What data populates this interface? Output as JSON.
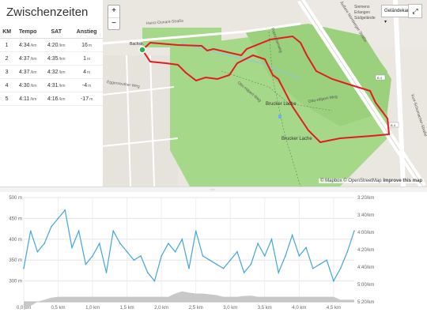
{
  "panel": {
    "title": "Zwischenzeiten",
    "columns": [
      "KM",
      "Tempo",
      "SAT",
      "Anstieg"
    ],
    "rows": [
      {
        "km": "1",
        "tempo": "4:34",
        "tempo_unit": "/km",
        "sat": "4:20",
        "sat_unit": "/km",
        "anstieg": "16",
        "anstieg_unit": "m"
      },
      {
        "km": "2",
        "tempo": "4:37",
        "tempo_unit": "/km",
        "sat": "4:35",
        "sat_unit": "/km",
        "anstieg": "1",
        "anstieg_unit": "m"
      },
      {
        "km": "3",
        "tempo": "4:37",
        "tempo_unit": "/km",
        "sat": "4:32",
        "sat_unit": "/km",
        "anstieg": "4",
        "anstieg_unit": "m"
      },
      {
        "km": "4",
        "tempo": "4:30",
        "tempo_unit": "/km",
        "sat": "4:31",
        "sat_unit": "/km",
        "anstieg": "-4",
        "anstieg_unit": "m"
      },
      {
        "km": "5",
        "tempo": "4:11",
        "tempo_unit": "/km",
        "sat": "4:16",
        "sat_unit": "/km",
        "anstieg": "-17",
        "anstieg_unit": "m"
      }
    ]
  },
  "map": {
    "zoom_in": "+",
    "zoom_out": "−",
    "layer_select": "Geländekarte",
    "fullscreen": "⤢",
    "attribution": {
      "mapbox": "© Mapbox",
      "osm": "© OpenStreetMap",
      "improve": "Improve this map"
    },
    "labels": {
      "heinrich_dunant": "Heinz-Dunant-Straße",
      "eggenreuther": "Eggenreuther Weg",
      "otto_hilpert_1": "Otto-Hilpert-Weg",
      "otto_hilpert_2": "Otto-Hilpert-Weg",
      "brucker_lache_1": "Brucker Lache",
      "brucker_lache_2": "Brucker Lache",
      "franzosenweg": "Franzosenweg",
      "nuernberger_strasse": "Äußere Nürnberger Straße",
      "kurt_schumacher": "Kurt-Schumacher-Straße",
      "b4_top": "B 4",
      "b4_bottom": "B 4",
      "bachstrasse": "Bachstr.",
      "siemens": "Siemens",
      "erlangen": "Erlangen",
      "suedgelaende": "Südgelände"
    },
    "colors": {
      "route": "#e11d1d",
      "forest": "#9cd27e",
      "start": "#2bb24c"
    }
  },
  "chart_data": {
    "type": "line",
    "x": [
      0,
      0.1,
      0.2,
      0.3,
      0.4,
      0.5,
      0.6,
      0.7,
      0.8,
      0.9,
      1.0,
      1.1,
      1.2,
      1.3,
      1.4,
      1.5,
      1.6,
      1.7,
      1.8,
      1.9,
      2.0,
      2.1,
      2.2,
      2.3,
      2.4,
      2.5,
      2.6,
      2.7,
      2.8,
      2.9,
      3.0,
      3.1,
      3.2,
      3.3,
      3.4,
      3.5,
      3.6,
      3.7,
      3.8,
      3.9,
      4.0,
      4.1,
      4.2,
      4.3,
      4.4,
      4.5,
      4.6,
      4.7,
      4.8
    ],
    "series": [
      {
        "values": [
          330,
          420,
          370,
          390,
          430,
          450,
          470,
          380,
          420,
          340,
          360,
          390,
          320,
          420,
          390,
          370,
          350,
          360,
          320,
          300,
          360,
          390,
          370,
          400,
          330,
          420,
          360,
          350,
          340,
          330,
          350,
          370,
          320,
          340,
          390,
          360,
          400,
          320,
          360,
          410,
          360,
          380,
          330,
          340,
          350,
          300,
          330,
          370,
          420
        ]
      },
      {
        "values": [
          230,
          240,
          250,
          255,
          260,
          262,
          262,
          262,
          262,
          262,
          262,
          262,
          262,
          262,
          262,
          262,
          262,
          262,
          262,
          262,
          262,
          262,
          270,
          275,
          272,
          270,
          270,
          268,
          266,
          262,
          262,
          262,
          264,
          265,
          262,
          262,
          262,
          262,
          262,
          262,
          262,
          262,
          262,
          262,
          262,
          262,
          255,
          255,
          255
        ]
      }
    ],
    "xlabel": "",
    "ylabel": "",
    "xlim": [
      0,
      4.8
    ],
    "ylim": [
      250,
      500
    ],
    "x_ticks": [
      "0,0 km",
      "0,5 km",
      "1,0 km",
      "1,5 km",
      "2,0 km",
      "2,5 km",
      "3,0 km",
      "3,5 km",
      "4,0 km",
      "4,5 km"
    ],
    "y_ticks_left": [
      "500 m",
      "450 m",
      "400 m",
      "350 m",
      "300 m"
    ],
    "y_ticks_right": [
      "3:20/km",
      "3:40/km",
      "4:00/km",
      "4:20/km",
      "4:40/km",
      "5:00/km",
      "5:20/km"
    ],
    "colors": {
      "pace": "#41a6dc",
      "elevation": "#c8c8c8"
    }
  }
}
